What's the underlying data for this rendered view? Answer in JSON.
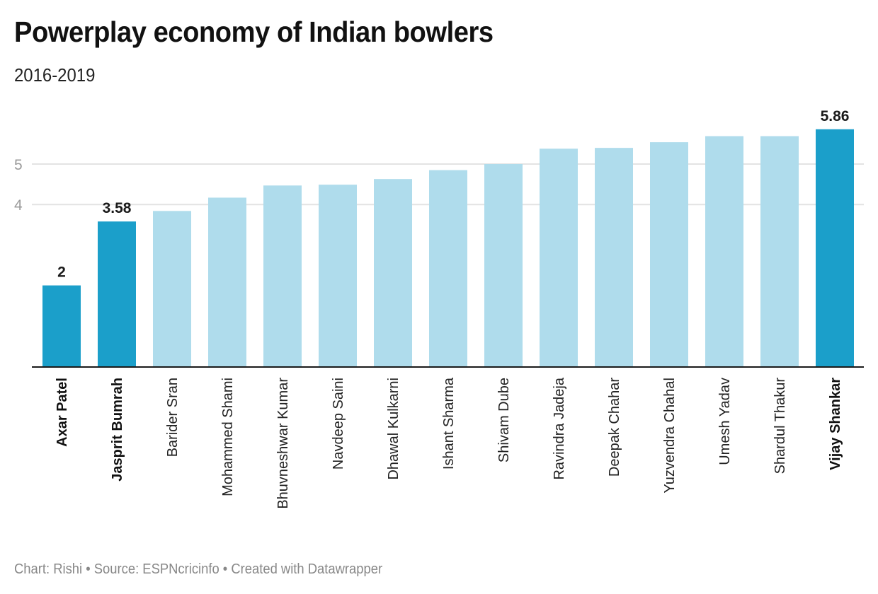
{
  "header": {
    "title": "Powerplay economy of Indian bowlers",
    "subtitle": "2016-2019"
  },
  "footer": {
    "text": "Chart: Rishi • Source: ESPNcricinfo • Created with Datawrapper"
  },
  "colors": {
    "highlight": "#1b9fca",
    "default": "#afdcec",
    "gridline": "#e3e3e3",
    "axis": "#1a1a1a"
  },
  "chart_data": {
    "type": "bar",
    "title": "Powerplay economy of Indian bowlers",
    "subtitle": "2016-2019",
    "xlabel": "",
    "ylabel": "",
    "ylim": [
      0,
      6
    ],
    "yticks": [
      4,
      5
    ],
    "ytick_labels": [
      "4",
      "5"
    ],
    "grid": true,
    "categories": [
      "Axar Patel",
      "Jasprit Bumrah",
      "Barider Sran",
      "Mohammed Shami",
      "Bhuvneshwar Kumar",
      "Navdeep Saini",
      "Dhawal Kulkarni",
      "Ishant Sharma",
      "Shivam Dube",
      "Ravindra Jadeja",
      "Deepak Chahar",
      "Yuzvendra Chahal",
      "Umesh Yadav",
      "Shardul Thakur",
      "Vijay Shankar"
    ],
    "values": [
      2,
      3.58,
      3.84,
      4.17,
      4.47,
      4.49,
      4.63,
      4.85,
      5.0,
      5.38,
      5.4,
      5.54,
      5.69,
      5.69,
      5.86
    ],
    "highlighted": [
      true,
      true,
      false,
      false,
      false,
      false,
      false,
      false,
      false,
      false,
      false,
      false,
      false,
      false,
      true
    ],
    "data_labels": [
      "2",
      "3.58",
      "",
      "",
      "",
      "",
      "",
      "",
      "",
      "",
      "",
      "",
      "",
      "",
      "5.86"
    ]
  }
}
